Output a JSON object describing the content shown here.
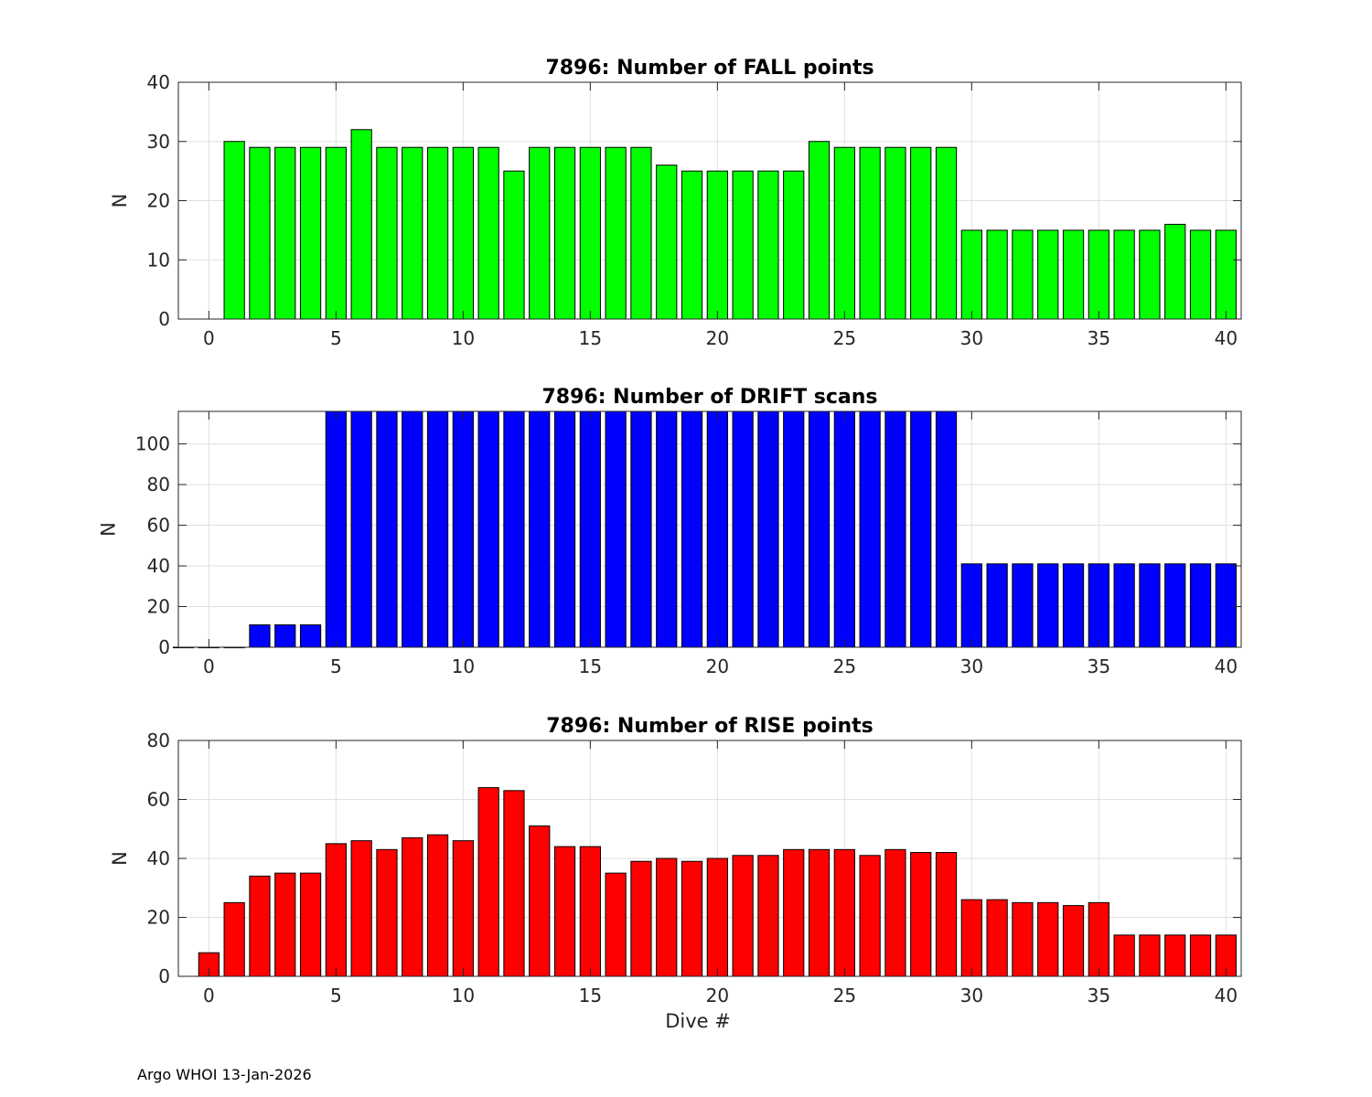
{
  "footer": "Argo WHOI 13-Jan-2026",
  "chart_data": [
    {
      "type": "bar",
      "title": "7896: Number of FALL points",
      "xlabel": "",
      "ylabel": "N",
      "xlim": [
        -1.2,
        40.6
      ],
      "ylim": [
        0,
        40
      ],
      "xticks": [
        0,
        5,
        10,
        15,
        20,
        25,
        30,
        35,
        40
      ],
      "yticks": [
        0,
        10,
        20,
        30,
        40
      ],
      "grid": true,
      "color": "#00ff00",
      "x": [
        1,
        2,
        3,
        4,
        5,
        6,
        7,
        8,
        9,
        10,
        11,
        12,
        13,
        14,
        15,
        16,
        17,
        18,
        19,
        20,
        21,
        22,
        23,
        24,
        25,
        26,
        27,
        28,
        29,
        30,
        31,
        32,
        33,
        34,
        35,
        36,
        37,
        38,
        39,
        40
      ],
      "values": [
        30,
        29,
        29,
        29,
        29,
        32,
        29,
        29,
        29,
        29,
        29,
        25,
        29,
        29,
        29,
        29,
        29,
        26,
        25,
        25,
        25,
        25,
        25,
        30,
        29,
        29,
        29,
        29,
        29,
        15,
        15,
        15,
        15,
        15,
        15,
        15,
        15,
        16,
        15,
        15
      ]
    },
    {
      "type": "bar",
      "title": "7896: Number of DRIFT scans",
      "xlabel": "",
      "ylabel": "N",
      "xlim": [
        -1.2,
        40.6
      ],
      "ylim": [
        0,
        116
      ],
      "xticks": [
        0,
        5,
        10,
        15,
        20,
        25,
        30,
        35,
        40
      ],
      "yticks": [
        0,
        20,
        40,
        60,
        80,
        100
      ],
      "grid": true,
      "color": "#0000ff",
      "x": [
        -1,
        0,
        1,
        2,
        3,
        4,
        5,
        6,
        7,
        8,
        9,
        10,
        11,
        12,
        13,
        14,
        15,
        16,
        17,
        18,
        19,
        20,
        21,
        22,
        23,
        24,
        25,
        26,
        27,
        28,
        29,
        30,
        31,
        32,
        33,
        34,
        35,
        36,
        37,
        38,
        39,
        40
      ],
      "values": [
        0,
        0,
        0,
        11,
        11,
        11,
        116,
        116,
        116,
        116,
        116,
        116,
        116,
        116,
        116,
        116,
        116,
        116,
        116,
        116,
        116,
        116,
        116,
        116,
        116,
        116,
        116,
        116,
        116,
        116,
        116,
        41,
        41,
        41,
        41,
        41,
        41,
        41,
        41,
        41,
        41,
        41
      ]
    },
    {
      "type": "bar",
      "title": "7896: Number of RISE points",
      "xlabel": "Dive #",
      "ylabel": "N",
      "xlim": [
        -1.2,
        40.6
      ],
      "ylim": [
        0,
        80
      ],
      "xticks": [
        0,
        5,
        10,
        15,
        20,
        25,
        30,
        35,
        40
      ],
      "yticks": [
        0,
        20,
        40,
        60,
        80
      ],
      "grid": true,
      "color": "#ff0000",
      "x": [
        0,
        1,
        2,
        3,
        4,
        5,
        6,
        7,
        8,
        9,
        10,
        11,
        12,
        13,
        14,
        15,
        16,
        17,
        18,
        19,
        20,
        21,
        22,
        23,
        24,
        25,
        26,
        27,
        28,
        29,
        30,
        31,
        32,
        33,
        34,
        35,
        36,
        37,
        38,
        39,
        40
      ],
      "values": [
        8,
        25,
        34,
        35,
        35,
        45,
        46,
        43,
        47,
        48,
        46,
        64,
        63,
        51,
        44,
        44,
        35,
        39,
        40,
        39,
        40,
        41,
        41,
        43,
        43,
        43,
        41,
        43,
        42,
        42,
        26,
        26,
        25,
        25,
        24,
        25,
        14,
        14,
        14,
        14,
        14
      ]
    }
  ]
}
